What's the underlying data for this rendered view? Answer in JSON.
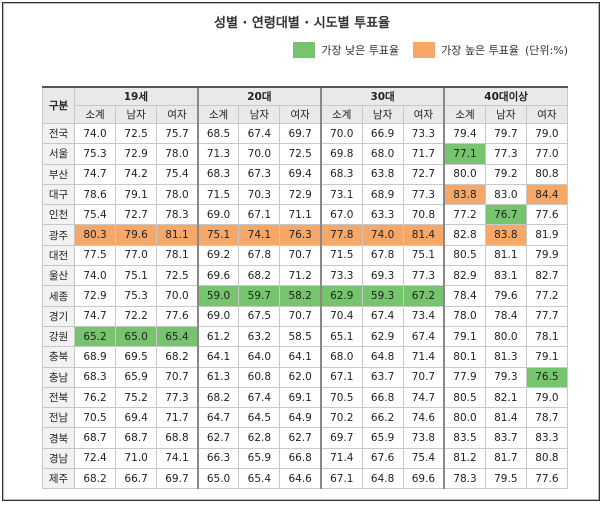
{
  "title": "성별 · 연령대별 · 시도별 투표율",
  "legend": [
    {
      "label": "가장 낮은 투표율",
      "color": "#77c46e",
      "cells": [
        [
          1,
          9
        ],
        [
          4,
          10
        ],
        [
          8,
          3
        ],
        [
          8,
          4
        ],
        [
          8,
          5
        ],
        [
          8,
          6
        ],
        [
          8,
          7
        ],
        [
          8,
          8
        ],
        [
          10,
          0
        ],
        [
          10,
          1
        ],
        [
          10,
          2
        ],
        [
          12,
          11
        ]
      ]
    },
    {
      "label": "가장 높은 투표율",
      "color": "#f7a868",
      "cells": [
        [
          3,
          9
        ],
        [
          3,
          11
        ],
        [
          5,
          0
        ],
        [
          5,
          1
        ],
        [
          5,
          2
        ],
        [
          5,
          3
        ],
        [
          5,
          4
        ],
        [
          5,
          5
        ],
        [
          5,
          6
        ],
        [
          5,
          7
        ],
        [
          5,
          8
        ],
        [
          5,
          10
        ]
      ]
    }
  ],
  "unit": "(단위:%)",
  "table": {
    "corner": "구분",
    "groups": [
      "19세",
      "20대",
      "30대",
      "40대이상"
    ],
    "subheaders": [
      "소계",
      "남자",
      "여자"
    ],
    "rows": [
      {
        "label": "전국",
        "cells": [
          "74.0",
          "72.5",
          "75.7",
          "68.5",
          "67.4",
          "69.7",
          "70.0",
          "66.9",
          "73.3",
          "79.4",
          "79.7",
          "79.0"
        ]
      },
      {
        "label": "서울",
        "cells": [
          "75.3",
          "72.9",
          "78.0",
          "71.3",
          "70.0",
          "72.5",
          "69.8",
          "68.0",
          "71.7",
          "77.1",
          "77.3",
          "77.0"
        ]
      },
      {
        "label": "부산",
        "cells": [
          "74.7",
          "74.2",
          "75.4",
          "68.3",
          "67.3",
          "69.4",
          "68.3",
          "63.8",
          "72.7",
          "80.0",
          "79.2",
          "80.8"
        ]
      },
      {
        "label": "대구",
        "cells": [
          "78.6",
          "79.1",
          "78.0",
          "71.5",
          "70.3",
          "72.9",
          "73.1",
          "68.9",
          "77.3",
          "83.8",
          "83.0",
          "84.4"
        ]
      },
      {
        "label": "인천",
        "cells": [
          "75.4",
          "72.7",
          "78.3",
          "69.0",
          "67.1",
          "71.1",
          "67.0",
          "63.3",
          "70.8",
          "77.2",
          "76.7",
          "77.6"
        ]
      },
      {
        "label": "광주",
        "cells": [
          "80.3",
          "79.6",
          "81.1",
          "75.1",
          "74.1",
          "76.3",
          "77.8",
          "74.0",
          "81.4",
          "82.8",
          "83.8",
          "81.9"
        ]
      },
      {
        "label": "대전",
        "cells": [
          "77.5",
          "77.0",
          "78.1",
          "69.2",
          "67.8",
          "70.7",
          "71.5",
          "67.8",
          "75.1",
          "80.5",
          "81.1",
          "79.9"
        ]
      },
      {
        "label": "울산",
        "cells": [
          "74.0",
          "75.1",
          "72.5",
          "69.6",
          "68.2",
          "71.2",
          "73.3",
          "69.3",
          "77.3",
          "82.9",
          "83.1",
          "82.7"
        ]
      },
      {
        "label": "세종",
        "cells": [
          "72.9",
          "75.3",
          "70.0",
          "59.0",
          "59.7",
          "58.2",
          "62.9",
          "59.3",
          "67.2",
          "78.4",
          "79.6",
          "77.2"
        ]
      },
      {
        "label": "경기",
        "cells": [
          "74.7",
          "72.2",
          "77.6",
          "69.0",
          "67.5",
          "70.7",
          "70.4",
          "67.4",
          "73.4",
          "78.0",
          "78.4",
          "77.7"
        ]
      },
      {
        "label": "강원",
        "cells": [
          "65.2",
          "65.0",
          "65.4",
          "61.2",
          "63.2",
          "58.5",
          "65.1",
          "62.9",
          "67.4",
          "79.1",
          "80.0",
          "78.1"
        ]
      },
      {
        "label": "충북",
        "cells": [
          "68.9",
          "69.5",
          "68.2",
          "64.1",
          "64.0",
          "64.1",
          "68.0",
          "64.8",
          "71.4",
          "80.1",
          "81.3",
          "79.1"
        ]
      },
      {
        "label": "충남",
        "cells": [
          "68.3",
          "65.9",
          "70.7",
          "61.3",
          "60.8",
          "62.0",
          "67.1",
          "63.7",
          "70.7",
          "77.9",
          "79.3",
          "76.5"
        ]
      },
      {
        "label": "전북",
        "cells": [
          "76.2",
          "75.2",
          "77.3",
          "68.2",
          "67.4",
          "69.1",
          "70.5",
          "66.8",
          "74.7",
          "80.5",
          "82.1",
          "79.0"
        ]
      },
      {
        "label": "전남",
        "cells": [
          "70.5",
          "69.4",
          "71.7",
          "64.7",
          "64.5",
          "64.9",
          "70.2",
          "66.2",
          "74.6",
          "80.0",
          "81.4",
          "78.7"
        ]
      },
      {
        "label": "경북",
        "cells": [
          "68.7",
          "68.7",
          "68.8",
          "62.7",
          "62.8",
          "62.7",
          "69.7",
          "65.9",
          "73.8",
          "83.5",
          "83.7",
          "83.3"
        ]
      },
      {
        "label": "경남",
        "cells": [
          "72.4",
          "71.0",
          "74.1",
          "66.3",
          "65.9",
          "66.8",
          "71.4",
          "67.6",
          "75.4",
          "81.2",
          "81.7",
          "80.8"
        ]
      },
      {
        "label": "제주",
        "cells": [
          "68.2",
          "66.7",
          "69.7",
          "65.0",
          "65.4",
          "64.6",
          "67.1",
          "64.8",
          "69.6",
          "78.3",
          "79.5",
          "77.6"
        ]
      }
    ]
  }
}
